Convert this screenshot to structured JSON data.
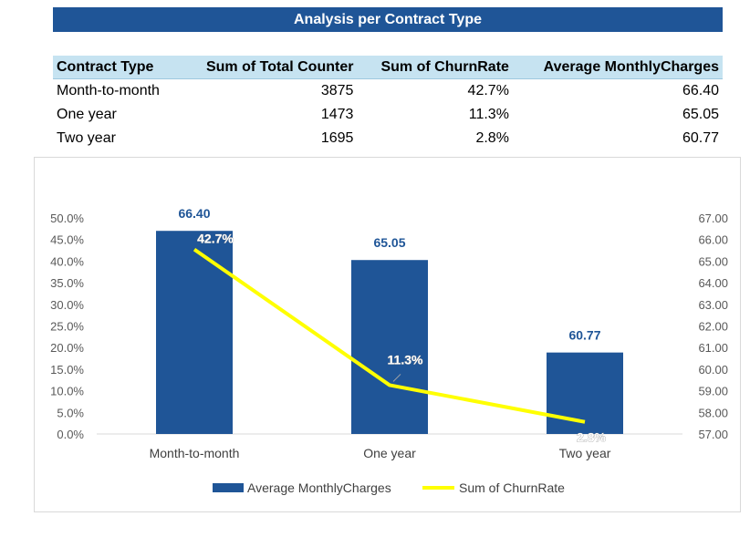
{
  "title": "Analysis per Contract Type",
  "table": {
    "headers": [
      "Contract Type",
      "Sum of Total Counter",
      "Sum of ChurnRate",
      "Average MonthlyCharges"
    ],
    "rows": [
      [
        "Month-to-month",
        "3875",
        "42.7%",
        "66.40"
      ],
      [
        "One year",
        "1473",
        "11.3%",
        "65.05"
      ],
      [
        "Two year",
        "1695",
        "2.8%",
        "60.77"
      ]
    ]
  },
  "chart_data": {
    "type": "bar",
    "categories": [
      "Month-to-month",
      "One year",
      "Two year"
    ],
    "series": [
      {
        "name": "Average MonthlyCharges",
        "type": "bar",
        "axis": "right",
        "values": [
          66.4,
          65.05,
          60.77
        ],
        "labels": [
          "66.40",
          "65.05",
          "60.77"
        ],
        "color": "#1f5597"
      },
      {
        "name": "Sum of ChurnRate",
        "type": "line",
        "axis": "left",
        "values": [
          42.7,
          11.3,
          2.8
        ],
        "labels": [
          "42.7%",
          "11.3%",
          "2.8%"
        ],
        "color": "#ffff00"
      }
    ],
    "left_axis": {
      "min": 0,
      "max": 50,
      "step": 5,
      "tick_labels": [
        "0.0%",
        "5.0%",
        "10.0%",
        "15.0%",
        "20.0%",
        "25.0%",
        "30.0%",
        "35.0%",
        "40.0%",
        "45.0%",
        "50.0%"
      ]
    },
    "right_axis": {
      "min": 57,
      "max": 67,
      "step": 1,
      "tick_labels": [
        "57.00",
        "58.00",
        "59.00",
        "60.00",
        "61.00",
        "62.00",
        "63.00",
        "64.00",
        "65.00",
        "66.00",
        "67.00"
      ]
    },
    "grid": false,
    "legend_position": "bottom"
  }
}
